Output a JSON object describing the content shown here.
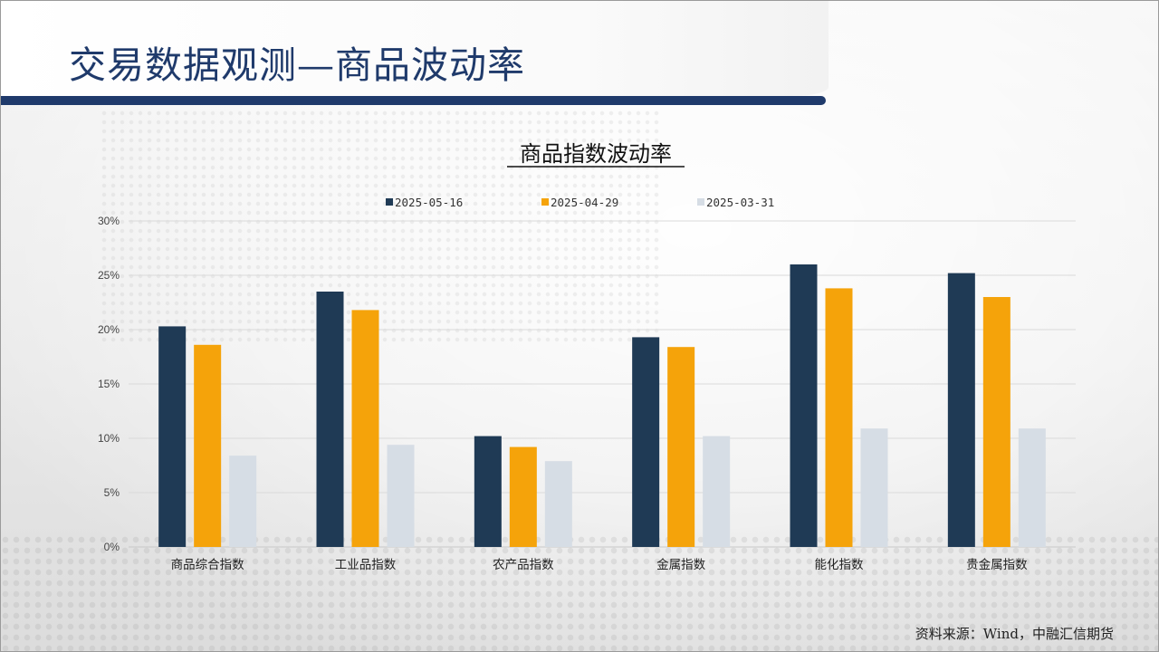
{
  "slide": {
    "title": "交易数据观测—商品波动率",
    "source": "资料来源：Wind，中融汇信期货"
  },
  "colors": {
    "header_text": "#1f3a6b",
    "header_bar": "#1f3a6b",
    "series": [
      "#1f3a55",
      "#f5a30a",
      "#d6dde5"
    ]
  },
  "chart_data": {
    "type": "bar",
    "title": "商品指数波动率",
    "categories": [
      "商品综合指数",
      "工业品指数",
      "农产品指数",
      "金属指数",
      "能化指数",
      "贵金属指数"
    ],
    "series": [
      {
        "name": "2025-05-16",
        "values": [
          20.3,
          23.5,
          10.2,
          19.3,
          26.0,
          25.2
        ]
      },
      {
        "name": "2025-04-29",
        "values": [
          18.6,
          21.8,
          9.2,
          18.4,
          23.8,
          23.0
        ]
      },
      {
        "name": "2025-03-31",
        "values": [
          8.4,
          9.4,
          7.9,
          10.2,
          10.9,
          10.9
        ]
      }
    ],
    "yticks": [
      "0%",
      "5%",
      "10%",
      "15%",
      "20%",
      "25%",
      "30%"
    ],
    "ylim": [
      0,
      30
    ],
    "grid": true,
    "legend": "top-center"
  }
}
